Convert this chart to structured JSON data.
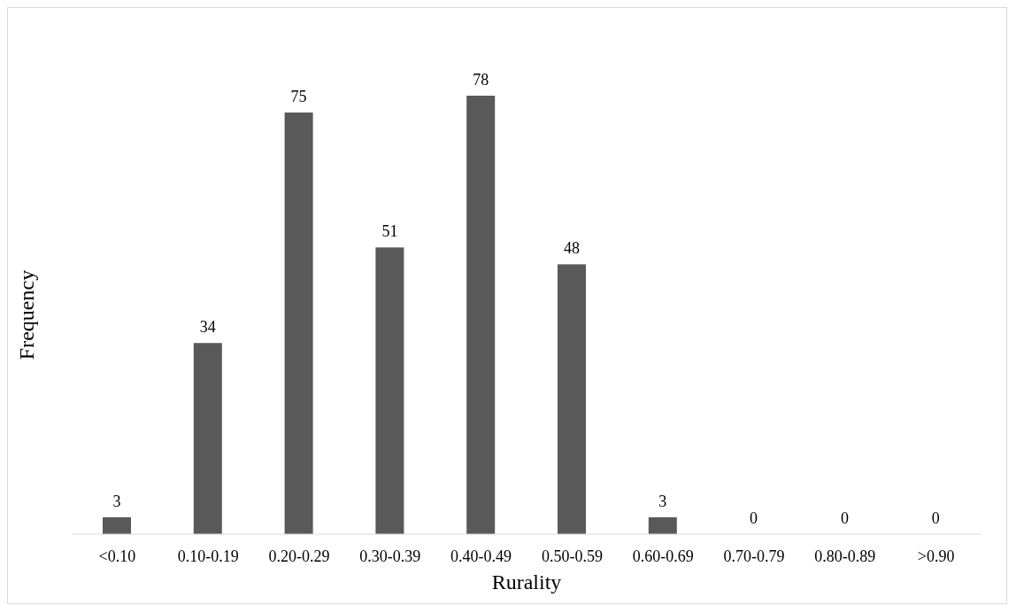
{
  "chart_data": {
    "type": "bar",
    "xlabel": "Rurality",
    "ylabel": "Frequency",
    "categories": [
      "<0.10",
      "0.10-0.19",
      "0.20-0.29",
      "0.30-0.39",
      "0.40-0.49",
      "0.50-0.59",
      "0.60-0.69",
      "0.70-0.79",
      "0.80-0.89",
      ">0.90"
    ],
    "values": [
      3,
      34,
      75,
      51,
      78,
      48,
      3,
      0,
      0,
      0
    ],
    "color": "#595959",
    "data_labels": true,
    "tick_labels": "x"
  }
}
